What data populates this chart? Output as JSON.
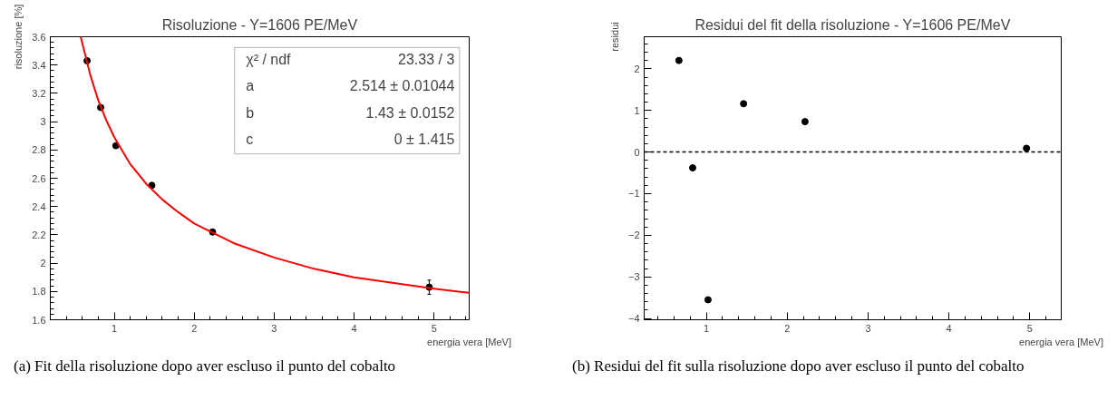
{
  "chart_data": [
    {
      "type": "scatter",
      "title": "Risoluzione - Y=1606 PE/MeV",
      "xlabel": "energia vera [MeV]",
      "ylabel": "risoluzione [%]",
      "x": [
        0.66,
        0.83,
        1.02,
        1.47,
        2.23,
        4.94
      ],
      "series": [
        {
          "color": "#000000",
          "values": [
            3.43,
            3.1,
            2.83,
            2.55,
            2.22,
            1.83
          ],
          "errors": [
            null,
            null,
            null,
            null,
            null,
            0.05
          ]
        },
        {
          "type": "line",
          "marker": "none",
          "color": "#ff0000",
          "x": [
            0.58,
            0.7,
            0.8,
            0.9,
            1.0,
            1.2,
            1.4,
            1.6,
            1.8,
            2.0,
            2.5,
            3.0,
            3.5,
            4.0,
            4.5,
            5.0,
            5.44
          ],
          "values": [
            3.6,
            3.33,
            3.15,
            3.01,
            2.89,
            2.7,
            2.56,
            2.45,
            2.36,
            2.28,
            2.14,
            2.04,
            1.96,
            1.9,
            1.86,
            1.82,
            1.79
          ]
        }
      ],
      "xlim": [
        0.2,
        5.44
      ],
      "ylim": [
        1.6,
        3.6
      ],
      "xticks": [
        1,
        2,
        3,
        4,
        5
      ],
      "yticks": [
        1.6,
        1.8,
        2,
        2.2,
        2.4,
        2.6,
        2.8,
        3,
        3.2,
        3.4,
        3.6
      ],
      "marker": "circle",
      "grid": false,
      "annotations": [
        "χ² / ndf",
        "23.33 / 3",
        "a",
        "2.514 ± 0.01044",
        "b",
        "1.43 ± 0.0152",
        "c",
        "0 ± 1.415",
        "(a) Fit della risoluzione dopo aver escluso il punto del cobalto"
      ]
    },
    {
      "type": "scatter",
      "title": "Residui del fit della risoluzione - Y=1606 PE/MeV",
      "xlabel": "energia vera [MeV]",
      "ylabel": "residui",
      "x": [
        0.66,
        0.83,
        1.02,
        1.46,
        2.22,
        4.96
      ],
      "series": [
        {
          "color": "#000000",
          "values": [
            2.2,
            -0.38,
            -3.55,
            1.16,
            0.73,
            0.09
          ]
        }
      ],
      "xlim": [
        0.23,
        5.39
      ],
      "ylim": [
        -4.03,
        2.77
      ],
      "xticks": [
        1,
        2,
        3,
        4,
        5
      ],
      "yticks": [
        -4,
        -3,
        -2,
        -1,
        0,
        1,
        2
      ],
      "ref_lines": [
        {
          "axis": "y",
          "value": 0,
          "color": "#000000",
          "line_style": "dashed"
        }
      ],
      "marker": "circle",
      "grid": false,
      "annotations": [
        "(b) Residui del fit sulla risoluzione dopo aver escluso il punto del cobalto"
      ]
    }
  ]
}
